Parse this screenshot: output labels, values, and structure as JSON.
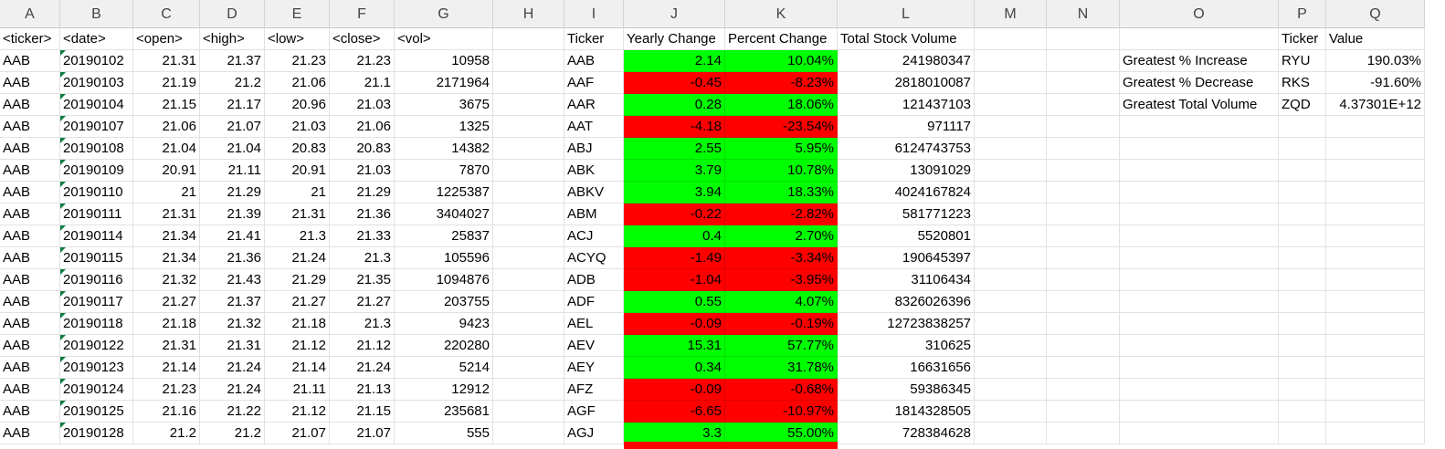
{
  "colors": {
    "positive": "#00ff00",
    "negative": "#ff0000",
    "error_triangle": "#107c41"
  },
  "columns": [
    "A",
    "B",
    "C",
    "D",
    "E",
    "F",
    "G",
    "H",
    "I",
    "J",
    "K",
    "L",
    "M",
    "N",
    "O",
    "P",
    "Q"
  ],
  "header_row": {
    "a": "<ticker>",
    "b": "<date>",
    "c": "<open>",
    "d": "<high>",
    "e": "<low>",
    "f": "<close>",
    "g": "<vol>",
    "i": "Ticker",
    "j": "Yearly Change",
    "k": "Percent Change",
    "l": "Total Stock Volume",
    "p": "Ticker",
    "q": "Value"
  },
  "rows": [
    {
      "a": "AAB",
      "b": "20190102",
      "c": "21.31",
      "d": "21.37",
      "e": "21.23",
      "f": "21.23",
      "g": "10958",
      "i": "AAB",
      "j": "2.14",
      "k": "10.04%",
      "l": "241980347",
      "status": "positive",
      "o": "Greatest % Increase",
      "p": "RYU",
      "q": "190.03%"
    },
    {
      "a": "AAB",
      "b": "20190103",
      "c": "21.19",
      "d": "21.2",
      "e": "21.06",
      "f": "21.1",
      "g": "2171964",
      "i": "AAF",
      "j": "-0.45",
      "k": "-8.23%",
      "l": "2818010087",
      "status": "negative",
      "o": "Greatest % Decrease",
      "p": "RKS",
      "q": "-91.60%"
    },
    {
      "a": "AAB",
      "b": "20190104",
      "c": "21.15",
      "d": "21.17",
      "e": "20.96",
      "f": "21.03",
      "g": "3675",
      "i": "AAR",
      "j": "0.28",
      "k": "18.06%",
      "l": "121437103",
      "status": "positive",
      "o": "Greatest Total Volume",
      "p": "ZQD",
      "q": "4.37301E+12"
    },
    {
      "a": "AAB",
      "b": "20190107",
      "c": "21.06",
      "d": "21.07",
      "e": "21.03",
      "f": "21.06",
      "g": "1325",
      "i": "AAT",
      "j": "-4.18",
      "k": "-23.54%",
      "l": "971117",
      "status": "negative",
      "o": "",
      "p": "",
      "q": ""
    },
    {
      "a": "AAB",
      "b": "20190108",
      "c": "21.04",
      "d": "21.04",
      "e": "20.83",
      "f": "20.83",
      "g": "14382",
      "i": "ABJ",
      "j": "2.55",
      "k": "5.95%",
      "l": "6124743753",
      "status": "positive",
      "o": "",
      "p": "",
      "q": ""
    },
    {
      "a": "AAB",
      "b": "20190109",
      "c": "20.91",
      "d": "21.11",
      "e": "20.91",
      "f": "21.03",
      "g": "7870",
      "i": "ABK",
      "j": "3.79",
      "k": "10.78%",
      "l": "13091029",
      "status": "positive",
      "o": "",
      "p": "",
      "q": ""
    },
    {
      "a": "AAB",
      "b": "20190110",
      "c": "21",
      "d": "21.29",
      "e": "21",
      "f": "21.29",
      "g": "1225387",
      "i": "ABKV",
      "j": "3.94",
      "k": "18.33%",
      "l": "4024167824",
      "status": "positive",
      "o": "",
      "p": "",
      "q": ""
    },
    {
      "a": "AAB",
      "b": "20190111",
      "c": "21.31",
      "d": "21.39",
      "e": "21.31",
      "f": "21.36",
      "g": "3404027",
      "i": "ABM",
      "j": "-0.22",
      "k": "-2.82%",
      "l": "581771223",
      "status": "negative",
      "o": "",
      "p": "",
      "q": ""
    },
    {
      "a": "AAB",
      "b": "20190114",
      "c": "21.34",
      "d": "21.41",
      "e": "21.3",
      "f": "21.33",
      "g": "25837",
      "i": "ACJ",
      "j": "0.4",
      "k": "2.70%",
      "l": "5520801",
      "status": "positive",
      "o": "",
      "p": "",
      "q": ""
    },
    {
      "a": "AAB",
      "b": "20190115",
      "c": "21.34",
      "d": "21.36",
      "e": "21.24",
      "f": "21.3",
      "g": "105596",
      "i": "ACYQ",
      "j": "-1.49",
      "k": "-3.34%",
      "l": "190645397",
      "status": "negative",
      "o": "",
      "p": "",
      "q": ""
    },
    {
      "a": "AAB",
      "b": "20190116",
      "c": "21.32",
      "d": "21.43",
      "e": "21.29",
      "f": "21.35",
      "g": "1094876",
      "i": "ADB",
      "j": "-1.04",
      "k": "-3.95%",
      "l": "31106434",
      "status": "negative",
      "o": "",
      "p": "",
      "q": ""
    },
    {
      "a": "AAB",
      "b": "20190117",
      "c": "21.27",
      "d": "21.37",
      "e": "21.27",
      "f": "21.27",
      "g": "203755",
      "i": "ADF",
      "j": "0.55",
      "k": "4.07%",
      "l": "8326026396",
      "status": "positive",
      "o": "",
      "p": "",
      "q": ""
    },
    {
      "a": "AAB",
      "b": "20190118",
      "c": "21.18",
      "d": "21.32",
      "e": "21.18",
      "f": "21.3",
      "g": "9423",
      "i": "AEL",
      "j": "-0.09",
      "k": "-0.19%",
      "l": "12723838257",
      "status": "negative",
      "o": "",
      "p": "",
      "q": ""
    },
    {
      "a": "AAB",
      "b": "20190122",
      "c": "21.31",
      "d": "21.31",
      "e": "21.12",
      "f": "21.12",
      "g": "220280",
      "i": "AEV",
      "j": "15.31",
      "k": "57.77%",
      "l": "310625",
      "status": "positive",
      "o": "",
      "p": "",
      "q": ""
    },
    {
      "a": "AAB",
      "b": "20190123",
      "c": "21.14",
      "d": "21.24",
      "e": "21.14",
      "f": "21.24",
      "g": "5214",
      "i": "AEY",
      "j": "0.34",
      "k": "31.78%",
      "l": "16631656",
      "status": "positive",
      "o": "",
      "p": "",
      "q": ""
    },
    {
      "a": "AAB",
      "b": "20190124",
      "c": "21.23",
      "d": "21.24",
      "e": "21.11",
      "f": "21.13",
      "g": "12912",
      "i": "AFZ",
      "j": "-0.09",
      "k": "-0.68%",
      "l": "59386345",
      "status": "negative",
      "o": "",
      "p": "",
      "q": ""
    },
    {
      "a": "AAB",
      "b": "20190125",
      "c": "21.16",
      "d": "21.22",
      "e": "21.12",
      "f": "21.15",
      "g": "235681",
      "i": "AGF",
      "j": "-6.65",
      "k": "-10.97%",
      "l": "1814328505",
      "status": "negative",
      "o": "",
      "p": "",
      "q": ""
    },
    {
      "a": "AAB",
      "b": "20190128",
      "c": "21.2",
      "d": "21.2",
      "e": "21.07",
      "f": "21.07",
      "g": "555",
      "i": "AGJ",
      "j": "3.3",
      "k": "55.00%",
      "l": "728384628",
      "status": "positive",
      "o": "",
      "p": "",
      "q": ""
    }
  ]
}
